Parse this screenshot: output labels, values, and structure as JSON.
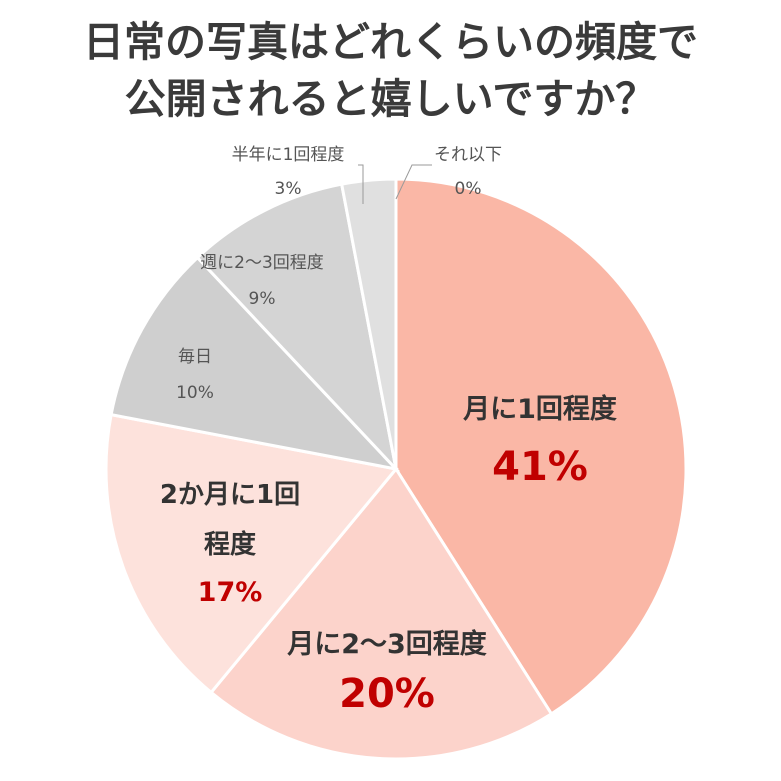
{
  "title_line1": "日常の写真はどれくらいの頻度で",
  "title_line2": "公開されると嬉しいですか？",
  "chart_data": {
    "type": "pie",
    "title": "日常の写真はどれくらいの頻度で公開されると嬉しいですか？",
    "slices": [
      {
        "label": "月に1回程度",
        "value": 41,
        "display": "41%",
        "color": "#fab7a6",
        "style": "major"
      },
      {
        "label": "月に2〜3回程度",
        "value": 20,
        "display": "20%",
        "color": "#fcd3cb",
        "style": "major"
      },
      {
        "label": "2か月に1回程度",
        "label_lines": [
          "2か月に1回",
          "程度"
        ],
        "value": 17,
        "display": "17%",
        "color": "#fde2dc",
        "style": "mid"
      },
      {
        "label": "毎日",
        "value": 10,
        "display": "10%",
        "color": "#cfcfcf",
        "style": "minor"
      },
      {
        "label": "週に2〜3回程度",
        "value": 9,
        "display": "9%",
        "color": "#d4d4d4",
        "style": "minor"
      },
      {
        "label": "半年に1回程度",
        "value": 3,
        "display": "3%",
        "color": "#e0e0e0",
        "style": "minor"
      },
      {
        "label": "それ以下",
        "value": 0,
        "display": "0%",
        "color": "#e8e8e8",
        "style": "minor"
      }
    ],
    "colors": {
      "accent": "#c00000",
      "major_label": "#333333",
      "minor_label": "#555555"
    }
  }
}
